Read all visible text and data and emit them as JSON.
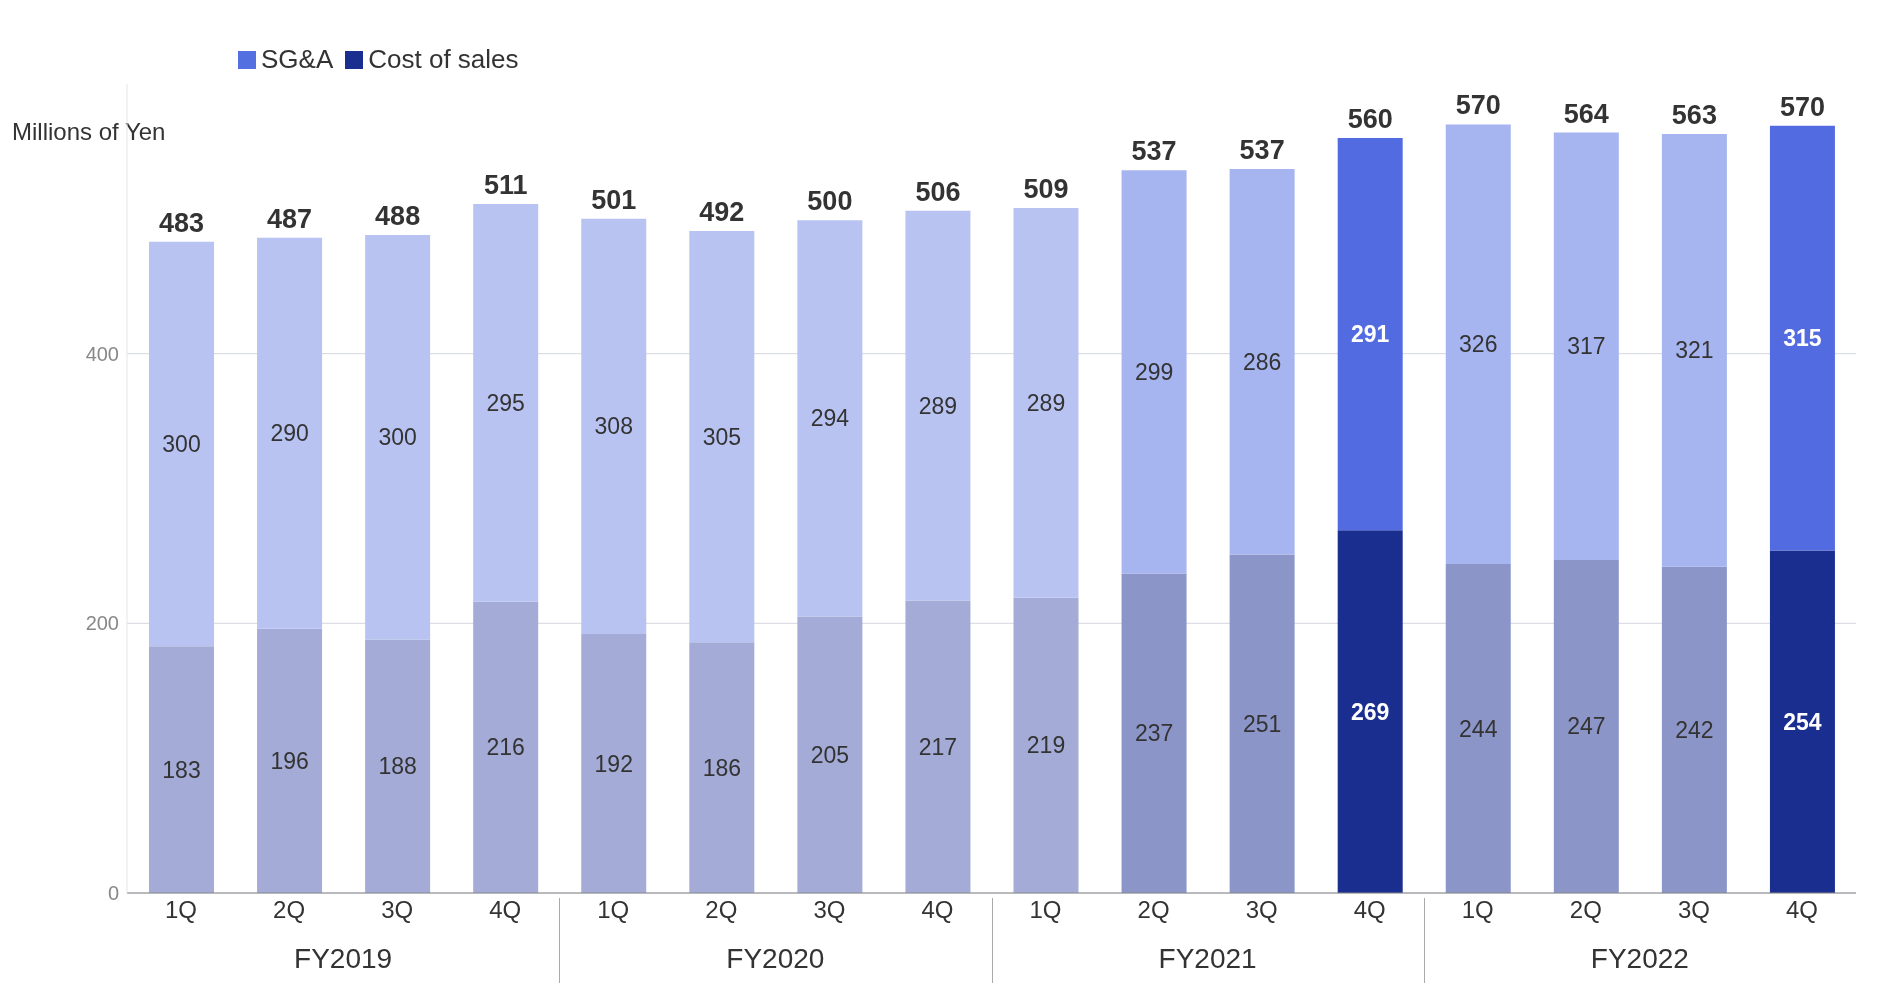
{
  "chart_data": {
    "type": "bar",
    "stacked": true,
    "ylabel": "Millions of Yen",
    "categories": [
      "1Q",
      "2Q",
      "3Q",
      "4Q",
      "1Q",
      "2Q",
      "3Q",
      "4Q",
      "1Q",
      "2Q",
      "3Q",
      "4Q",
      "1Q",
      "2Q",
      "3Q",
      "4Q"
    ],
    "series": [
      {
        "name": "Cost of sales",
        "color": "#1a2e8f",
        "values": [
          183,
          196,
          188,
          216,
          192,
          186,
          205,
          217,
          219,
          237,
          251,
          269,
          244,
          247,
          242,
          254
        ],
        "colors": [
          "#a3abd6",
          "#a3abd6",
          "#a3abd6",
          "#a3abd6",
          "#a3abd6",
          "#a3abd6",
          "#a3abd6",
          "#a3abd6",
          "#a3abd6",
          "#8c95c8",
          "#8c95c8",
          "#1a2e8f",
          "#8c95c8",
          "#8c95c8",
          "#8c95c8",
          "#1a2e8f"
        ]
      },
      {
        "name": "SG&A",
        "color": "#5470e0",
        "values": [
          300,
          290,
          300,
          295,
          308,
          305,
          294,
          289,
          289,
          299,
          286,
          291,
          326,
          317,
          321,
          315
        ],
        "colors": [
          "#b8c3f2",
          "#b8c3f2",
          "#b8c3f2",
          "#b8c3f2",
          "#b8c3f2",
          "#b8c3f2",
          "#b8c3f2",
          "#b8c3f2",
          "#b8c3f2",
          "#a6b4ef",
          "#a6b4ef",
          "#536be0",
          "#a6b4ef",
          "#a6b4ef",
          "#a6b4ef",
          "#536be0"
        ]
      }
    ],
    "totals": [
      "483",
      "487",
      "488",
      "511",
      "501",
      "492",
      "500",
      "506",
      "509",
      "537",
      "537",
      "560",
      "570",
      "564",
      "563",
      "570"
    ],
    "data_labels": true,
    "annotations": [
      "FY2019",
      "FY2020",
      "FY2021",
      "FY2022"
    ],
    "ylim": [
      0,
      600
    ],
    "yticks": [
      0,
      200,
      400
    ],
    "grid": "y",
    "legend": "top left"
  }
}
